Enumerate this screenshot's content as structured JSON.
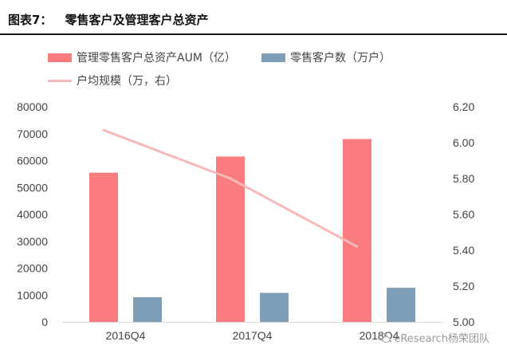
{
  "header": {
    "number": "图表7：",
    "title": "零售客户及管理客户总资产"
  },
  "colors": {
    "aum_bar": "#fb7c7e",
    "customers_bar": "#7e9db7",
    "avg_line": "#f7b8ba",
    "axis_text": "#444444"
  },
  "chart_data": {
    "type": "bar",
    "title": "",
    "categories": [
      "2016Q4",
      "2017Q4",
      "2018Q4"
    ],
    "series": [
      {
        "name": "管理零售客户总资产AUM（亿）",
        "kind": "bar",
        "axis": "left",
        "values": [
          55500,
          61500,
          68000
        ]
      },
      {
        "name": "零售客户数（万户）",
        "kind": "bar",
        "axis": "left",
        "values": [
          9200,
          10800,
          12700
        ]
      },
      {
        "name": "户均规模（万，右）",
        "kind": "line",
        "axis": "right",
        "values": [
          6.07,
          5.8,
          5.42
        ]
      }
    ],
    "y_left": {
      "min": 0,
      "max": 80000,
      "ticks": [
        "0",
        "10000",
        "20000",
        "30000",
        "40000",
        "50000",
        "60000",
        "70000",
        "80000"
      ]
    },
    "y_right": {
      "min": 5.0,
      "max": 6.2,
      "ticks": [
        "5.00",
        "5.20",
        "5.40",
        "5.60",
        "5.80",
        "6.00",
        "6.20"
      ]
    },
    "grid": false,
    "legend": "top-left"
  },
  "watermark": {
    "text": "eResearch杨荣团队",
    "icon": "wechat-icon"
  }
}
